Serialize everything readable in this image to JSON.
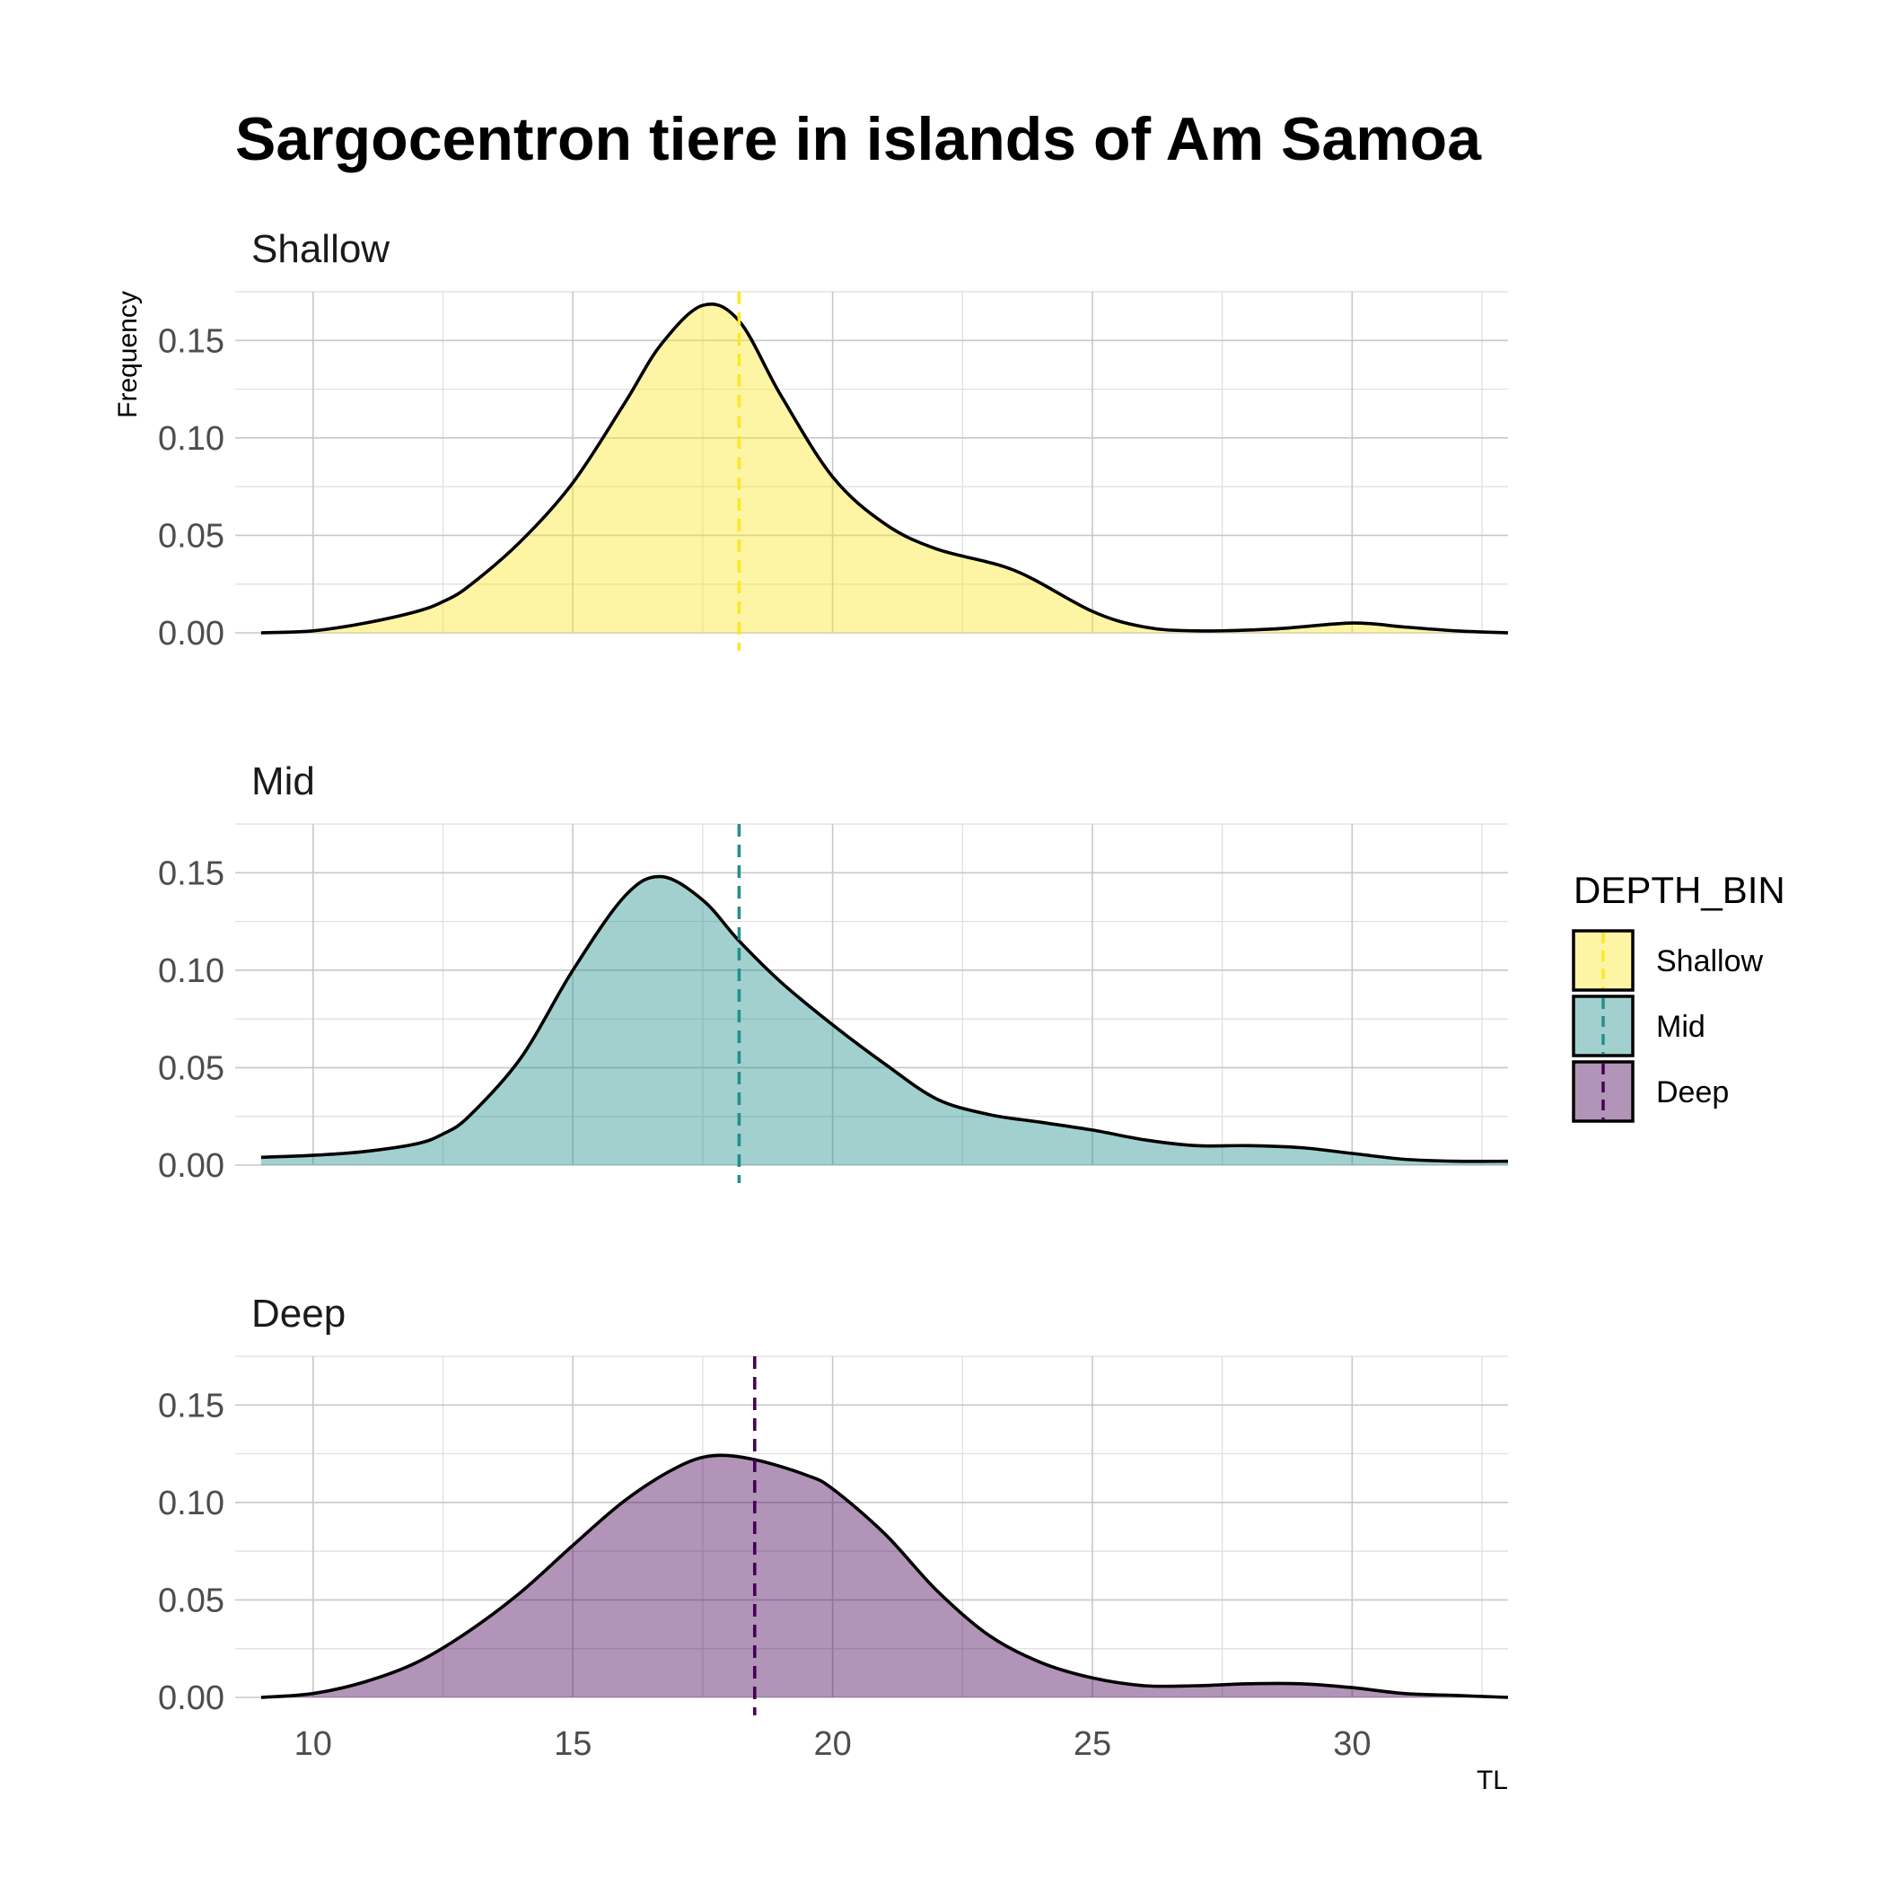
{
  "chart_data": {
    "type": "area",
    "title": "Sargocentron tiere in islands of Am Samoa",
    "xlabel": "TL",
    "ylabel": "Frequency",
    "xlim": [
      8.5,
      33
    ],
    "ylim": [
      0,
      0.175
    ],
    "x_ticks": [
      10,
      15,
      20,
      25,
      30
    ],
    "y_ticks": [
      0,
      0.05,
      0.1,
      0.15
    ],
    "y_tick_labels": [
      "0.00",
      "0.05",
      "0.10",
      "0.15"
    ],
    "grid": true,
    "legend": {
      "title": "DEPTH_BIN",
      "position": "right",
      "entries": [
        "Shallow",
        "Mid",
        "Deep"
      ]
    },
    "series": [
      {
        "name": "Shallow",
        "fill": "#FDE725",
        "line": "#FDE725",
        "mean": 18.2,
        "x": [
          9,
          10,
          11,
          12,
          12.5,
          13,
          14,
          15,
          16,
          16.7,
          17.5,
          18.2,
          19,
          20,
          21,
          22,
          23.5,
          25,
          26,
          27,
          28.5,
          30,
          31,
          32,
          33
        ],
        "y": [
          0,
          0.001,
          0.005,
          0.011,
          0.016,
          0.024,
          0.047,
          0.077,
          0.118,
          0.148,
          0.168,
          0.16,
          0.122,
          0.08,
          0.056,
          0.043,
          0.032,
          0.011,
          0.003,
          0.001,
          0.002,
          0.005,
          0.003,
          0.001,
          0
        ]
      },
      {
        "name": "Mid",
        "fill": "#21908C",
        "line": "#21908C",
        "mean": 18.2,
        "x": [
          9,
          10,
          11,
          12,
          12.5,
          13,
          14,
          15,
          16,
          16.7,
          17.5,
          18.2,
          19,
          20,
          21,
          22,
          23,
          24,
          25,
          26,
          27,
          28,
          29,
          30,
          31,
          32,
          33
        ],
        "y": [
          0.004,
          0.005,
          0.007,
          0.011,
          0.016,
          0.025,
          0.055,
          0.1,
          0.138,
          0.148,
          0.136,
          0.115,
          0.094,
          0.072,
          0.052,
          0.034,
          0.026,
          0.022,
          0.018,
          0.013,
          0.01,
          0.01,
          0.009,
          0.006,
          0.003,
          0.002,
          0.002
        ]
      },
      {
        "name": "Deep",
        "fill": "#440154",
        "line": "#440154",
        "mean": 18.5,
        "x": [
          9,
          10,
          11,
          12,
          13,
          14,
          15,
          16,
          17,
          17.7,
          18.5,
          19.5,
          20,
          21,
          22,
          23,
          24,
          25,
          26,
          27,
          28,
          29,
          30,
          31,
          32,
          33
        ],
        "y": [
          0,
          0.002,
          0.008,
          0.018,
          0.034,
          0.054,
          0.078,
          0.101,
          0.118,
          0.124,
          0.122,
          0.114,
          0.107,
          0.084,
          0.055,
          0.032,
          0.018,
          0.01,
          0.006,
          0.006,
          0.007,
          0.007,
          0.005,
          0.002,
          0.001,
          0
        ]
      }
    ]
  }
}
